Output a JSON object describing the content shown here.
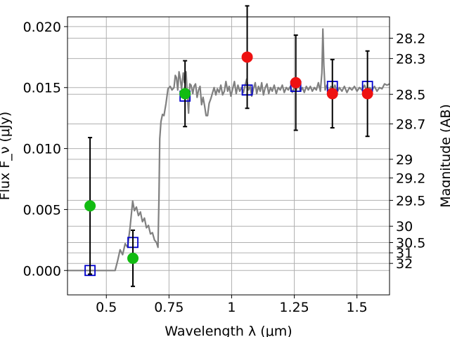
{
  "chart_data": {
    "type": "scatter",
    "title": "",
    "xlabel": "Wavelength  λ (μm)",
    "ylabel": "Flux F_ν (μJy)",
    "ylabel_right": "Magnitude (AB)",
    "xlim": [
      0.345,
      1.63
    ],
    "ylim": [
      -0.002,
      0.0208
    ],
    "grid": true,
    "x_ticks": [
      0.5,
      0.75,
      1,
      1.25,
      1.5
    ],
    "x_tick_labels": [
      "0.5",
      "0.75",
      "1",
      "1.25",
      "1.5"
    ],
    "y_ticks": [
      0.0,
      0.005,
      0.01,
      0.015,
      0.02
    ],
    "y_tick_labels": [
      "0.000",
      "0.005",
      "0.010",
      "0.015",
      "0.020"
    ],
    "mag_ticks": [
      {
        "label": "28.2",
        "flux": 0.01905
      },
      {
        "label": "28.3",
        "flux": 0.01738
      },
      {
        "label": "28.5",
        "flux": 0.01445
      },
      {
        "label": "28.7",
        "flux": 0.01202
      },
      {
        "label": "29",
        "flux": 0.00912
      },
      {
        "label": "29.2",
        "flux": 0.00759
      },
      {
        "label": "29.5",
        "flux": 0.00575
      },
      {
        "label": "30",
        "flux": 0.00363
      },
      {
        "label": "30.5",
        "flux": 0.00229
      },
      {
        "label": "31",
        "flux": 0.00145
      },
      {
        "label": "32",
        "flux": 0.00058
      }
    ],
    "colors": {
      "spectrum": "#808080",
      "model_marker": "#0000cc",
      "detection": "#11bb11",
      "non_detection": "#ee1111",
      "errorbar": "#000000",
      "grid": "#b0b0b0"
    },
    "spectrum": [
      [
        0.345,
        0
      ],
      [
        0.52,
        0
      ],
      [
        0.535,
        0
      ],
      [
        0.545,
        0.0008
      ],
      [
        0.555,
        0.0017
      ],
      [
        0.565,
        0.0013
      ],
      [
        0.575,
        0.0022
      ],
      [
        0.585,
        0.0019
      ],
      [
        0.595,
        0.0036
      ],
      [
        0.605,
        0.0057
      ],
      [
        0.612,
        0.0049
      ],
      [
        0.62,
        0.0052
      ],
      [
        0.628,
        0.0045
      ],
      [
        0.636,
        0.0048
      ],
      [
        0.644,
        0.004
      ],
      [
        0.652,
        0.0043
      ],
      [
        0.66,
        0.0035
      ],
      [
        0.668,
        0.0037
      ],
      [
        0.676,
        0.003
      ],
      [
        0.684,
        0.0031
      ],
      [
        0.692,
        0.0025
      ],
      [
        0.7,
        0.0023
      ],
      [
        0.706,
        0.0019
      ],
      [
        0.71,
        0.006
      ],
      [
        0.713,
        0.0108
      ],
      [
        0.718,
        0.0122
      ],
      [
        0.724,
        0.0128
      ],
      [
        0.73,
        0.0127
      ],
      [
        0.738,
        0.0137
      ],
      [
        0.746,
        0.0149
      ],
      [
        0.755,
        0.0151
      ],
      [
        0.762,
        0.0148
      ],
      [
        0.77,
        0.015
      ],
      [
        0.775,
        0.016
      ],
      [
        0.78,
        0.0158
      ],
      [
        0.785,
        0.0148
      ],
      [
        0.79,
        0.0163
      ],
      [
        0.795,
        0.0157
      ],
      [
        0.8,
        0.0149
      ],
      [
        0.807,
        0.0162
      ],
      [
        0.812,
        0.0154
      ],
      [
        0.818,
        0.0163
      ],
      [
        0.823,
        0.0144
      ],
      [
        0.828,
        0.0129
      ],
      [
        0.833,
        0.0153
      ],
      [
        0.838,
        0.0152
      ],
      [
        0.845,
        0.0145
      ],
      [
        0.85,
        0.0151
      ],
      [
        0.856,
        0.0153
      ],
      [
        0.862,
        0.0142
      ],
      [
        0.868,
        0.0148
      ],
      [
        0.874,
        0.0151
      ],
      [
        0.88,
        0.0136
      ],
      [
        0.886,
        0.0142
      ],
      [
        0.892,
        0.0135
      ],
      [
        0.898,
        0.0127
      ],
      [
        0.904,
        0.0127
      ],
      [
        0.91,
        0.0137
      ],
      [
        0.917,
        0.0141
      ],
      [
        0.924,
        0.0146
      ],
      [
        0.93,
        0.015
      ],
      [
        0.937,
        0.0144
      ],
      [
        0.943,
        0.0149
      ],
      [
        0.95,
        0.0146
      ],
      [
        0.957,
        0.0152
      ],
      [
        0.964,
        0.0144
      ],
      [
        0.971,
        0.0147
      ],
      [
        0.977,
        0.0155
      ],
      [
        0.984,
        0.0147
      ],
      [
        0.99,
        0.0151
      ],
      [
        0.997,
        0.0143
      ],
      [
        1.004,
        0.0149
      ],
      [
        1.011,
        0.0155
      ],
      [
        1.018,
        0.0145
      ],
      [
        1.025,
        0.0152
      ],
      [
        1.032,
        0.0147
      ],
      [
        1.04,
        0.015
      ],
      [
        1.047,
        0.0146
      ],
      [
        1.054,
        0.0152
      ],
      [
        1.06,
        0.0157
      ],
      [
        1.067,
        0.0148
      ],
      [
        1.074,
        0.0151
      ],
      [
        1.08,
        0.0143
      ],
      [
        1.087,
        0.0149
      ],
      [
        1.094,
        0.0154
      ],
      [
        1.1,
        0.0145
      ],
      [
        1.107,
        0.0151
      ],
      [
        1.114,
        0.0147
      ],
      [
        1.12,
        0.0154
      ],
      [
        1.127,
        0.0144
      ],
      [
        1.134,
        0.015
      ],
      [
        1.141,
        0.0153
      ],
      [
        1.148,
        0.0145
      ],
      [
        1.155,
        0.015
      ],
      [
        1.162,
        0.0147
      ],
      [
        1.17,
        0.0152
      ],
      [
        1.178,
        0.0145
      ],
      [
        1.186,
        0.015
      ],
      [
        1.194,
        0.0148
      ],
      [
        1.202,
        0.0152
      ],
      [
        1.21,
        0.0146
      ],
      [
        1.218,
        0.015
      ],
      [
        1.226,
        0.0148
      ],
      [
        1.234,
        0.0151
      ],
      [
        1.242,
        0.0146
      ],
      [
        1.25,
        0.015
      ],
      [
        1.258,
        0.0148
      ],
      [
        1.266,
        0.0153
      ],
      [
        1.274,
        0.0147
      ],
      [
        1.282,
        0.015
      ],
      [
        1.29,
        0.0146
      ],
      [
        1.298,
        0.0151
      ],
      [
        1.306,
        0.0148
      ],
      [
        1.314,
        0.0151
      ],
      [
        1.322,
        0.0147
      ],
      [
        1.33,
        0.015
      ],
      [
        1.338,
        0.0148
      ],
      [
        1.346,
        0.0154
      ],
      [
        1.354,
        0.0147
      ],
      [
        1.36,
        0.0162
      ],
      [
        1.364,
        0.0198
      ],
      [
        1.368,
        0.0168
      ],
      [
        1.373,
        0.0148
      ],
      [
        1.38,
        0.0152
      ],
      [
        1.388,
        0.0146
      ],
      [
        1.396,
        0.0151
      ],
      [
        1.404,
        0.0148
      ],
      [
        1.412,
        0.0152
      ],
      [
        1.42,
        0.0146
      ],
      [
        1.43,
        0.015
      ],
      [
        1.44,
        0.0147
      ],
      [
        1.45,
        0.0151
      ],
      [
        1.46,
        0.0146
      ],
      [
        1.47,
        0.015
      ],
      [
        1.48,
        0.0148
      ],
      [
        1.49,
        0.0151
      ],
      [
        1.5,
        0.0147
      ],
      [
        1.51,
        0.015
      ],
      [
        1.52,
        0.0148
      ],
      [
        1.53,
        0.0152
      ],
      [
        1.54,
        0.0147
      ],
      [
        1.55,
        0.015
      ],
      [
        1.56,
        0.0148
      ],
      [
        1.57,
        0.0151
      ],
      [
        1.58,
        0.0147
      ],
      [
        1.59,
        0.015
      ],
      [
        1.6,
        0.0149
      ],
      [
        1.61,
        0.0153
      ],
      [
        1.62,
        0.0152
      ],
      [
        1.63,
        0.0153
      ]
    ],
    "model_photometry": [
      {
        "x": 0.435,
        "y": 0.0
      },
      {
        "x": 0.606,
        "y": 0.0023
      },
      {
        "x": 0.814,
        "y": 0.0143
      },
      {
        "x": 1.062,
        "y": 0.0148
      },
      {
        "x": 1.256,
        "y": 0.0151
      },
      {
        "x": 1.402,
        "y": 0.0151
      },
      {
        "x": 1.542,
        "y": 0.0151
      }
    ],
    "observed": [
      {
        "x": 0.435,
        "y": 0.0053,
        "yerr": 0.0056,
        "status": "detection"
      },
      {
        "x": 0.606,
        "y": 0.001,
        "yerr": 0.0023,
        "status": "detection"
      },
      {
        "x": 0.814,
        "y": 0.0145,
        "yerr": 0.0027,
        "status": "detection"
      },
      {
        "x": 1.062,
        "y": 0.0175,
        "yerr": 0.0042,
        "status": "non_detection"
      },
      {
        "x": 1.256,
        "y": 0.0154,
        "yerr": 0.0039,
        "status": "non_detection"
      },
      {
        "x": 1.402,
        "y": 0.0145,
        "yerr": 0.0028,
        "status": "non_detection"
      },
      {
        "x": 1.542,
        "y": 0.0145,
        "yerr": 0.0035,
        "status": "non_detection"
      }
    ]
  }
}
